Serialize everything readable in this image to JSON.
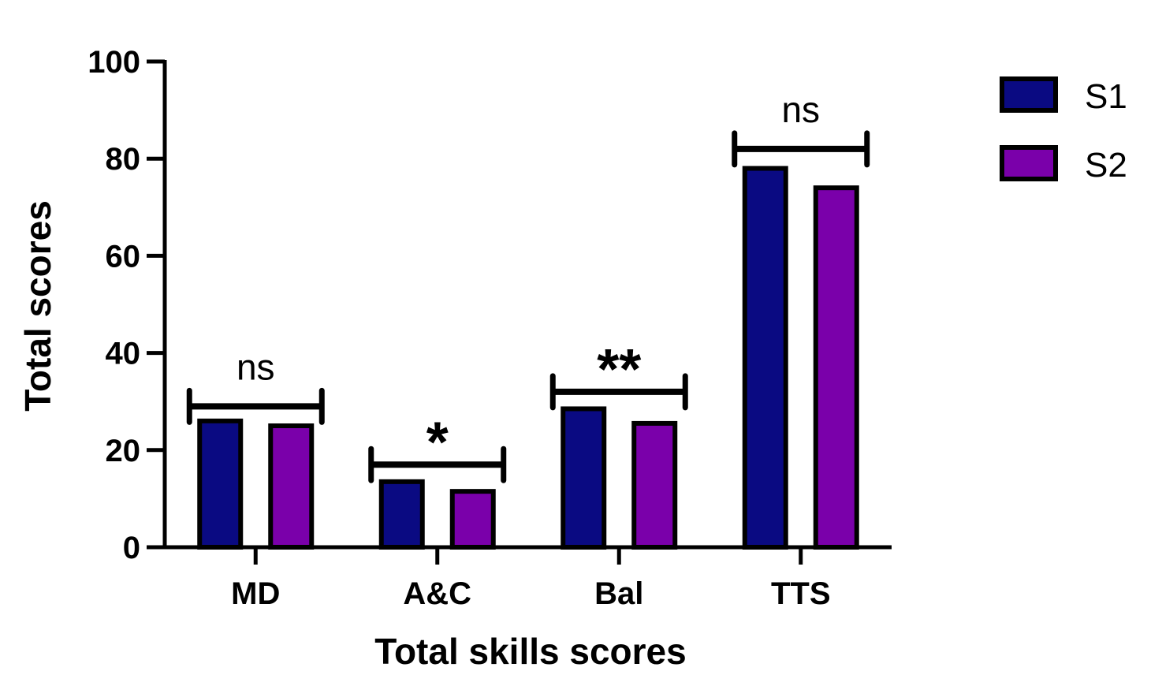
{
  "chart_data": {
    "type": "bar",
    "title": "",
    "xlabel": "Total skills scores",
    "ylabel": "Total scores",
    "ylim": [
      0,
      100
    ],
    "yticks": [
      0,
      20,
      40,
      60,
      80,
      100
    ],
    "categories": [
      "MD",
      "A&C",
      "Bal",
      "TTS"
    ],
    "series": [
      {
        "name": "S1",
        "color": "#0a0a82",
        "values": [
          26,
          13.5,
          28.5,
          78
        ]
      },
      {
        "name": "S2",
        "color": "#7a00aa",
        "values": [
          25,
          11.5,
          25.5,
          74
        ]
      }
    ],
    "significance": [
      {
        "category": "MD",
        "label": "ns",
        "level": 29
      },
      {
        "category": "A&C",
        "label": "*",
        "level": 17
      },
      {
        "category": "Bal",
        "label": "**",
        "level": 32
      },
      {
        "category": "TTS",
        "label": "ns",
        "level": 82
      }
    ],
    "legend_position": "top-right"
  }
}
